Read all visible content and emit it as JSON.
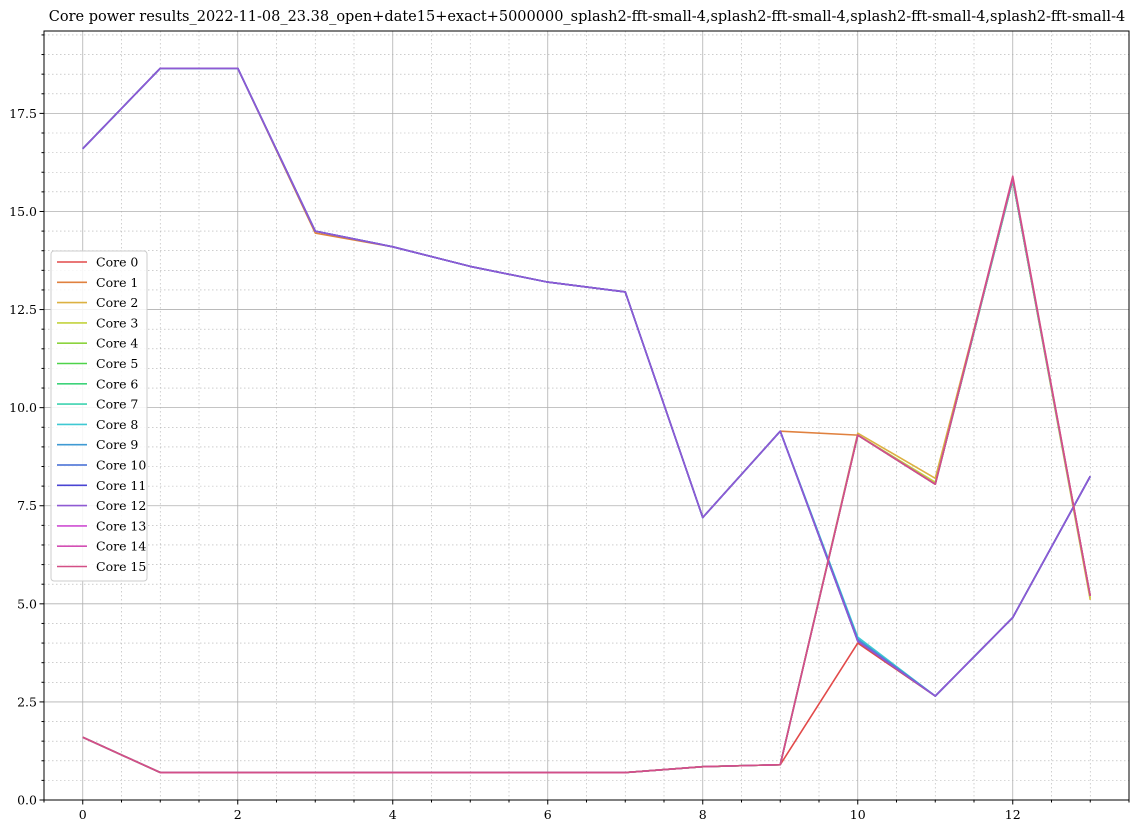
{
  "chart_data": {
    "type": "line",
    "title": "Core power results_2022-11-08_23.38_open+date15+exact+5000000_splash2-fft-small-4,splash2-fft-small-4,splash2-fft-small-4,splash2-fft-small-4",
    "xlabel": "",
    "ylabel": "",
    "xlim": [
      -0.5,
      13.5
    ],
    "ylim": [
      0,
      19.6
    ],
    "x_ticks": [
      0,
      2,
      4,
      6,
      8,
      10,
      12
    ],
    "x_tick_labels": [
      "0",
      "2",
      "4",
      "6",
      "8",
      "10",
      "12"
    ],
    "y_ticks": [
      0,
      2.5,
      5,
      7.5,
      10,
      12.5,
      15,
      17.5
    ],
    "y_tick_labels": [
      "0.0",
      "2.5",
      "5.0",
      "7.5",
      "10.0",
      "12.5",
      "15.0",
      "17.5"
    ],
    "grid": true,
    "minor_grid": true,
    "legend_position": "center-left",
    "x": [
      0,
      1,
      2,
      3,
      4,
      5,
      6,
      7,
      8,
      9,
      10,
      11,
      12,
      13
    ],
    "series": [
      {
        "name": "Core 0",
        "color": "#e24a4a",
        "values": [
          1.6,
          0.7,
          0.7,
          0.7,
          0.7,
          0.7,
          0.7,
          0.7,
          0.85,
          0.9,
          4.0,
          2.65,
          4.65,
          8.25
        ]
      },
      {
        "name": "Core 1",
        "color": "#e0813f",
        "values": [
          16.6,
          18.65,
          18.65,
          14.45,
          14.1,
          13.6,
          13.2,
          12.95,
          7.2,
          9.4,
          9.3,
          8.05,
          15.8,
          5.2
        ]
      },
      {
        "name": "Core 2",
        "color": "#dcb142",
        "values": [
          1.6,
          0.7,
          0.7,
          0.7,
          0.7,
          0.7,
          0.7,
          0.7,
          0.85,
          0.9,
          9.35,
          8.2,
          15.8,
          5.1
        ]
      },
      {
        "name": "Core 3",
        "color": "#c3d33e",
        "values": [
          1.6,
          0.7,
          0.7,
          0.7,
          0.7,
          0.7,
          0.7,
          0.7,
          0.85,
          0.9,
          9.3,
          8.1,
          15.8,
          5.15
        ]
      },
      {
        "name": "Core 4",
        "color": "#8cd33e",
        "values": [
          1.6,
          0.7,
          0.7,
          0.7,
          0.7,
          0.7,
          0.7,
          0.7,
          0.85,
          0.9,
          9.3,
          8.05,
          15.8,
          5.2
        ]
      },
      {
        "name": "Core 5",
        "color": "#4fd34a",
        "values": [
          1.6,
          0.7,
          0.7,
          0.7,
          0.7,
          0.7,
          0.7,
          0.7,
          0.85,
          0.9,
          9.3,
          8.05,
          15.8,
          5.2
        ]
      },
      {
        "name": "Core 6",
        "color": "#3ed37a",
        "values": [
          1.6,
          0.7,
          0.7,
          0.7,
          0.7,
          0.7,
          0.7,
          0.7,
          0.85,
          0.9,
          9.3,
          8.05,
          15.8,
          5.2
        ]
      },
      {
        "name": "Core 7",
        "color": "#3fd3b0",
        "values": [
          1.6,
          0.7,
          0.7,
          0.7,
          0.7,
          0.7,
          0.7,
          0.7,
          0.85,
          0.9,
          9.3,
          8.05,
          15.8,
          5.2
        ]
      },
      {
        "name": "Core 8",
        "color": "#3fc9d3",
        "values": [
          16.6,
          18.65,
          18.65,
          14.5,
          14.1,
          13.6,
          13.2,
          12.95,
          7.2,
          9.4,
          4.15,
          2.65,
          4.65,
          8.25
        ]
      },
      {
        "name": "Core 9",
        "color": "#3f9ad3",
        "values": [
          16.6,
          18.65,
          18.65,
          14.5,
          14.1,
          13.6,
          13.2,
          12.95,
          7.2,
          9.4,
          4.1,
          2.65,
          4.65,
          8.25
        ]
      },
      {
        "name": "Core 10",
        "color": "#3f68d3",
        "values": [
          16.6,
          18.65,
          18.65,
          14.5,
          14.1,
          13.6,
          13.2,
          12.95,
          7.2,
          9.4,
          4.05,
          2.65,
          4.65,
          8.25
        ]
      },
      {
        "name": "Core 11",
        "color": "#4a44d3",
        "values": [
          16.6,
          18.65,
          18.65,
          14.5,
          14.1,
          13.6,
          13.2,
          12.95,
          7.2,
          9.4,
          4.05,
          2.65,
          4.65,
          8.25
        ]
      },
      {
        "name": "Core 12",
        "color": "#8f5ad3",
        "values": [
          16.6,
          18.65,
          18.65,
          14.5,
          14.1,
          13.6,
          13.2,
          12.95,
          7.2,
          9.4,
          4.05,
          2.65,
          4.65,
          8.25
        ]
      },
      {
        "name": "Core 13",
        "color": "#cf4fd3",
        "values": [
          1.6,
          0.7,
          0.7,
          0.7,
          0.7,
          0.7,
          0.7,
          0.7,
          0.85,
          0.9,
          9.3,
          8.05,
          15.85,
          5.2
        ]
      },
      {
        "name": "Core 14",
        "color": "#d34fb4",
        "values": [
          1.6,
          0.7,
          0.7,
          0.7,
          0.7,
          0.7,
          0.7,
          0.7,
          0.85,
          0.9,
          9.3,
          8.05,
          15.85,
          5.2
        ]
      },
      {
        "name": "Core 15",
        "color": "#d34f86",
        "values": [
          1.6,
          0.7,
          0.7,
          0.7,
          0.7,
          0.7,
          0.7,
          0.7,
          0.85,
          0.9,
          9.3,
          8.05,
          15.9,
          5.2
        ]
      }
    ]
  }
}
